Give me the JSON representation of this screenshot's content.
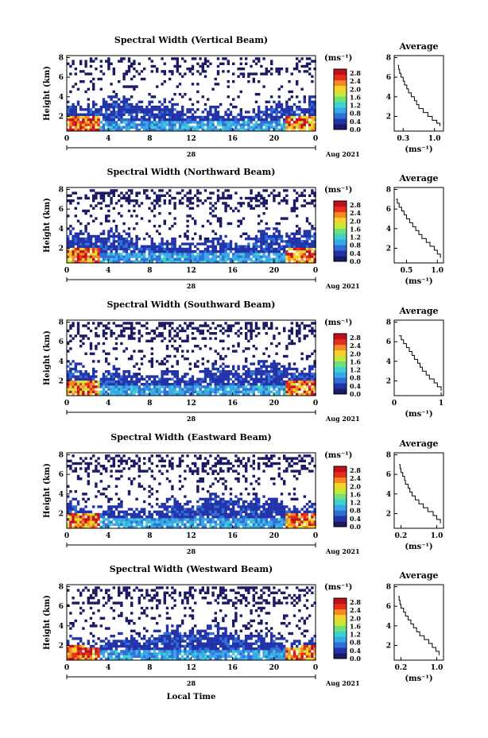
{
  "chart_data": {
    "type": "heatmap",
    "xlabel": "Local Time",
    "date_label": "Aug 2021",
    "day_label": "28",
    "x_ticks": [
      "0",
      "4",
      "8",
      "12",
      "16",
      "20",
      "0"
    ],
    "xlim": [
      0,
      24
    ],
    "ylabel": "Height (km)",
    "y_ticks": [
      "2",
      "4",
      "6",
      "8"
    ],
    "ylim": [
      0.5,
      8.2
    ],
    "colorbar": {
      "unit": "(ms⁻¹)",
      "ticks": [
        "0.0",
        "0.4",
        "0.8",
        "1.2",
        "1.6",
        "2.0",
        "2.4",
        "2.8"
      ],
      "range": [
        0,
        3.0
      ],
      "colors": [
        "#1a1a66",
        "#2233aa",
        "#2f6fd6",
        "#38a8e8",
        "#3fd0d0",
        "#6fe07a",
        "#c7e83a",
        "#f7d22a",
        "#f58a22",
        "#e42f1e",
        "#c0101a"
      ]
    },
    "average_panel": {
      "title": "Average",
      "unit": "(ms⁻¹)",
      "y_ticks": [
        "2",
        "4",
        "6",
        "8"
      ],
      "ylim": [
        0.5,
        8.2
      ]
    },
    "panels": [
      {
        "title": "Spectral Width (Vertical Beam)",
        "avg_x_ticks": [
          "0.3",
          "1.0"
        ],
        "avg_xlim": [
          0.1,
          1.2
        ],
        "avg_profile": [
          [
            1.12,
            1.0
          ],
          [
            1.05,
            1.3
          ],
          [
            0.95,
            1.6
          ],
          [
            0.85,
            2.0
          ],
          [
            0.75,
            2.4
          ],
          [
            0.65,
            2.8
          ],
          [
            0.6,
            3.2
          ],
          [
            0.55,
            3.6
          ],
          [
            0.48,
            4.0
          ],
          [
            0.42,
            4.4
          ],
          [
            0.38,
            4.8
          ],
          [
            0.33,
            5.2
          ],
          [
            0.3,
            5.6
          ],
          [
            0.25,
            6.0
          ],
          [
            0.22,
            6.4
          ],
          [
            0.2,
            6.8
          ],
          [
            0.18,
            7.2
          ]
        ]
      },
      {
        "title": "Spectral Width (Northward Beam)",
        "avg_x_ticks": [
          "0.5",
          "1.0"
        ],
        "avg_xlim": [
          0.3,
          1.1
        ],
        "avg_profile": [
          [
            1.05,
            1.0
          ],
          [
            1.0,
            1.4
          ],
          [
            0.95,
            1.8
          ],
          [
            0.88,
            2.2
          ],
          [
            0.82,
            2.6
          ],
          [
            0.75,
            3.0
          ],
          [
            0.7,
            3.4
          ],
          [
            0.65,
            3.8
          ],
          [
            0.6,
            4.2
          ],
          [
            0.55,
            4.6
          ],
          [
            0.5,
            5.0
          ],
          [
            0.46,
            5.4
          ],
          [
            0.42,
            5.8
          ],
          [
            0.38,
            6.2
          ],
          [
            0.35,
            6.6
          ],
          [
            0.33,
            7.0
          ]
        ]
      },
      {
        "title": "Spectral Width (Southward Beam)",
        "avg_x_ticks": [
          "0",
          "1"
        ],
        "avg_xlim": [
          0,
          1.05
        ],
        "avg_profile": [
          [
            1.0,
            1.0
          ],
          [
            0.92,
            1.4
          ],
          [
            0.85,
            1.8
          ],
          [
            0.75,
            2.2
          ],
          [
            0.68,
            2.6
          ],
          [
            0.6,
            3.0
          ],
          [
            0.55,
            3.4
          ],
          [
            0.5,
            3.8
          ],
          [
            0.43,
            4.2
          ],
          [
            0.38,
            4.6
          ],
          [
            0.32,
            5.0
          ],
          [
            0.26,
            5.4
          ],
          [
            0.2,
            5.8
          ],
          [
            0.15,
            6.2
          ],
          [
            0.1,
            6.6
          ]
        ]
      },
      {
        "title": "Spectral Width (Eastward Beam)",
        "avg_x_ticks": [
          "0.2",
          "1.0"
        ],
        "avg_xlim": [
          0.05,
          1.15
        ],
        "avg_profile": [
          [
            1.08,
            1.0
          ],
          [
            1.0,
            1.4
          ],
          [
            0.92,
            1.8
          ],
          [
            0.8,
            2.2
          ],
          [
            0.7,
            2.6
          ],
          [
            0.6,
            3.0
          ],
          [
            0.52,
            3.4
          ],
          [
            0.45,
            3.8
          ],
          [
            0.4,
            4.2
          ],
          [
            0.36,
            4.6
          ],
          [
            0.3,
            5.0
          ],
          [
            0.28,
            5.4
          ],
          [
            0.24,
            5.8
          ],
          [
            0.2,
            6.2
          ],
          [
            0.18,
            6.6
          ],
          [
            0.16,
            7.0
          ]
        ]
      },
      {
        "title": "Spectral Width (Westward Beam)",
        "avg_x_ticks": [
          "0.2",
          "1.0"
        ],
        "avg_xlim": [
          0.05,
          1.15
        ],
        "avg_profile": [
          [
            1.05,
            1.0
          ],
          [
            0.98,
            1.4
          ],
          [
            0.9,
            1.8
          ],
          [
            0.82,
            2.2
          ],
          [
            0.72,
            2.6
          ],
          [
            0.62,
            3.0
          ],
          [
            0.55,
            3.4
          ],
          [
            0.48,
            3.8
          ],
          [
            0.42,
            4.2
          ],
          [
            0.36,
            4.6
          ],
          [
            0.3,
            5.0
          ],
          [
            0.26,
            5.4
          ],
          [
            0.2,
            5.8
          ],
          [
            0.18,
            6.2
          ],
          [
            0.16,
            6.6
          ],
          [
            0.14,
            7.0
          ]
        ]
      }
    ]
  }
}
